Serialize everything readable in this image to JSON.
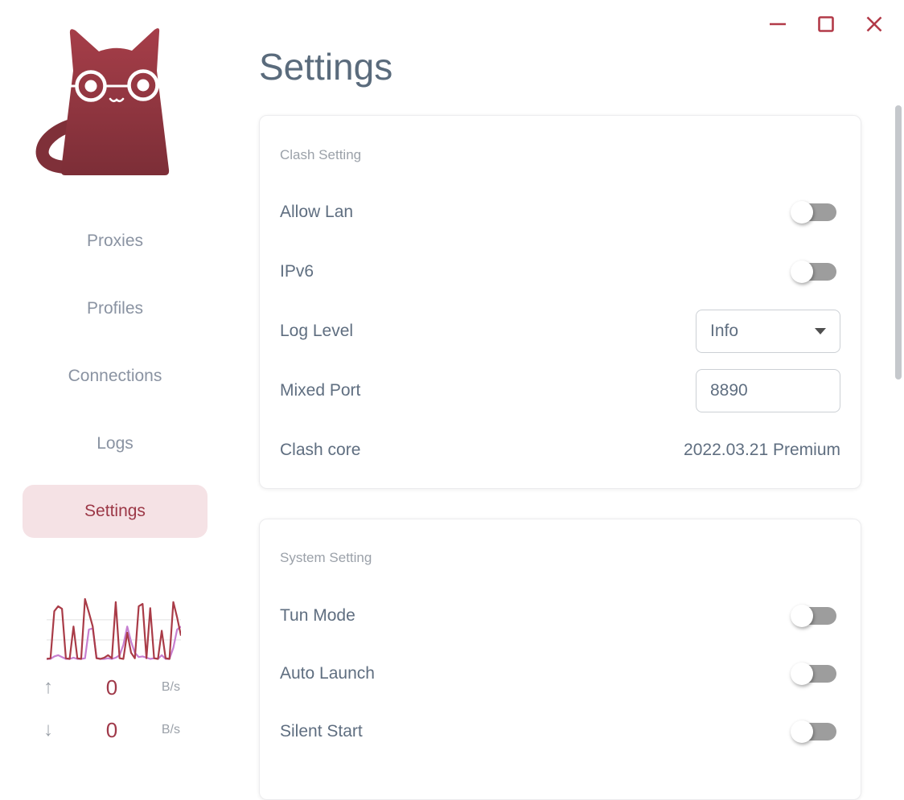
{
  "window": {
    "accent_color": "#b23a48",
    "controls": {
      "minimize_icon": "minimize-dash",
      "maximize_icon": "maximize-square",
      "close_icon": "close-x"
    }
  },
  "sidebar": {
    "logo": "cat-with-glasses-logo",
    "items": [
      {
        "label": "Proxies",
        "active": false
      },
      {
        "label": "Profiles",
        "active": false
      },
      {
        "label": "Connections",
        "active": false
      },
      {
        "label": "Logs",
        "active": false
      },
      {
        "label": "Settings",
        "active": true
      }
    ],
    "active_bg": "#f5e2e5",
    "active_text": "#9c3847",
    "traffic": {
      "up_arrow_icon": "↑",
      "up_value": "0",
      "up_unit": "B/s",
      "down_arrow_icon": "↓",
      "down_value": "0",
      "down_unit": "B/s"
    }
  },
  "main": {
    "title": "Settings",
    "cards": [
      {
        "section": "Clash Setting",
        "rows": [
          {
            "label": "Allow Lan",
            "control": "toggle",
            "value": "off"
          },
          {
            "label": "IPv6",
            "control": "toggle",
            "value": "off"
          },
          {
            "label": "Log Level",
            "control": "select",
            "value": "Info"
          },
          {
            "label": "Mixed Port",
            "control": "input",
            "value": "8890"
          },
          {
            "label": "Clash core",
            "control": "text",
            "value": "2022.03.21 Premium"
          }
        ]
      },
      {
        "section": "System Setting",
        "rows": [
          {
            "label": "Tun Mode",
            "control": "toggle",
            "value": "off"
          },
          {
            "label": "Auto Launch",
            "control": "toggle",
            "value": "off"
          },
          {
            "label": "Silent Start",
            "control": "toggle",
            "value": "off"
          }
        ]
      }
    ]
  },
  "chart_data": {
    "type": "line",
    "title": "sidebar traffic sparkline",
    "xlabel": "",
    "ylabel": "",
    "x_range": [
      0,
      35
    ],
    "ylim": [
      0,
      100
    ],
    "grid": true,
    "gridlines_y": [
      33,
      66
    ],
    "legend": "none",
    "series": [
      {
        "name": "purple",
        "color": "#c77fd0",
        "values": [
          2,
          2,
          6,
          8,
          5,
          2,
          2,
          4,
          2,
          2,
          3,
          50,
          52,
          4,
          2,
          2,
          3,
          2,
          4,
          8,
          25,
          55,
          30,
          12,
          5,
          6,
          4,
          2,
          3,
          2,
          8,
          2,
          2,
          20,
          50,
          55
        ]
      },
      {
        "name": "red",
        "color": "#a93b47",
        "values": [
          2,
          3,
          80,
          88,
          84,
          3,
          2,
          55,
          3,
          2,
          100,
          78,
          55,
          3,
          2,
          4,
          8,
          3,
          95,
          3,
          2,
          45,
          12,
          3,
          88,
          92,
          3,
          85,
          3,
          2,
          48,
          3,
          2,
          95,
          70,
          40
        ]
      }
    ]
  }
}
